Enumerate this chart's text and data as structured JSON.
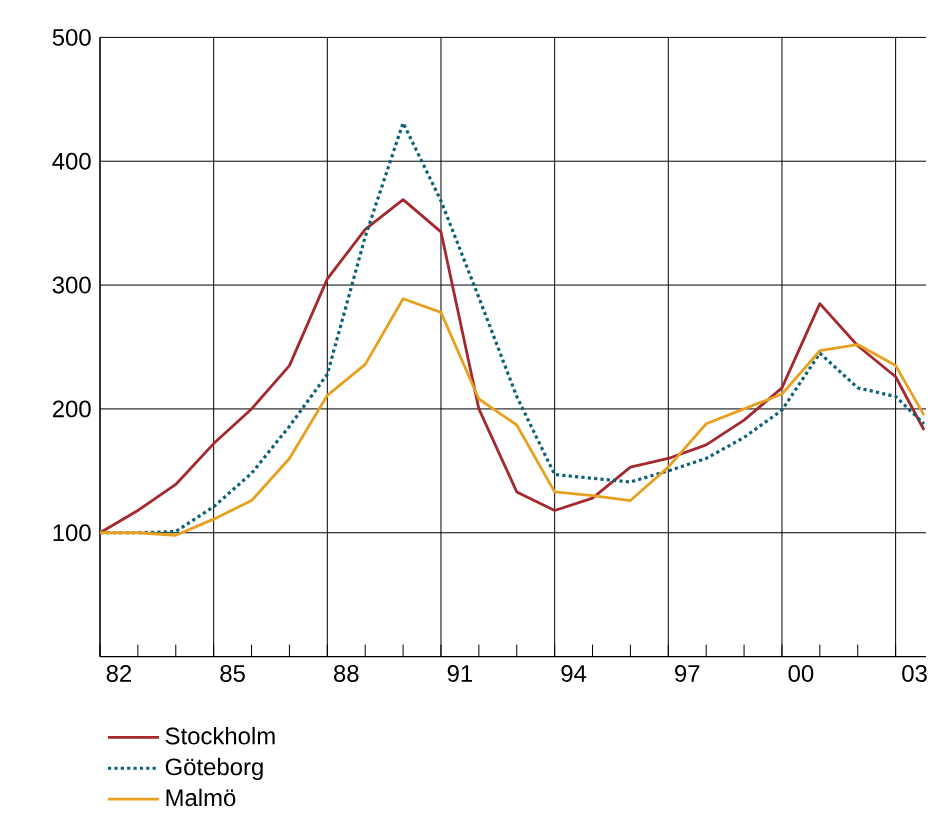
{
  "chart_data": {
    "type": "line",
    "x": [
      "1982",
      "1983",
      "1984",
      "1985",
      "1986",
      "1987",
      "1988",
      "1989",
      "1990",
      "1991",
      "1992",
      "1993",
      "1994",
      "1995",
      "1996",
      "1997",
      "1998",
      "1999",
      "2000",
      "2001",
      "2002",
      "2003",
      "2003-10"
    ],
    "series": [
      {
        "name": "Stockholm",
        "color": "#a4282e",
        "line_style": "solid",
        "values": [
          100,
          118,
          139,
          172,
          200,
          235,
          305,
          345,
          369,
          343,
          200,
          133,
          118,
          128,
          153,
          160,
          171,
          191,
          217,
          285,
          251,
          226,
          183
        ]
      },
      {
        "name": "Göteborg",
        "color": "#0b6277",
        "line_style": "dotted",
        "values": [
          100,
          100,
          101,
          121,
          148,
          186,
          228,
          339,
          431,
          368,
          290,
          210,
          147,
          144,
          141,
          150,
          160,
          177,
          199,
          245,
          217,
          210,
          188
        ]
      },
      {
        "name": "Malmö",
        "color": "#e8a020",
        "line_style": "solid",
        "values": [
          100,
          100,
          98,
          111,
          126,
          160,
          211,
          236,
          289,
          278,
          208,
          187,
          133,
          130,
          126,
          153,
          188,
          200,
          212,
          247,
          252,
          235,
          195
        ]
      }
    ],
    "xlim": [
      "1982",
      "2003-10-20"
    ],
    "ylim": [
      0,
      500
    ],
    "xticks": [
      {
        "value": "1982",
        "label": null
      },
      {
        "value": "1985",
        "label": null
      },
      {
        "value": "1988",
        "label": null
      },
      {
        "value": "1991",
        "label": null
      },
      {
        "value": "1994",
        "label": null
      },
      {
        "value": "1997",
        "label": null
      },
      {
        "value": "2000",
        "label": null
      },
      {
        "value": "2003",
        "label": null
      },
      {
        "value": "1982-07",
        "label": "82"
      },
      {
        "value": "1985-07",
        "label": "85"
      },
      {
        "value": "1988-07",
        "label": "88"
      },
      {
        "value": "1991-07",
        "label": "91"
      },
      {
        "value": "1994-07",
        "label": "94"
      },
      {
        "value": "1997-07",
        "label": "97"
      },
      {
        "value": "2000-07",
        "label": "00"
      },
      {
        "value": "2003-07",
        "label": "03"
      }
    ],
    "yticks": [
      100,
      200,
      300,
      400,
      500
    ],
    "grid": true,
    "legend": "bottom",
    "marker": "none"
  }
}
